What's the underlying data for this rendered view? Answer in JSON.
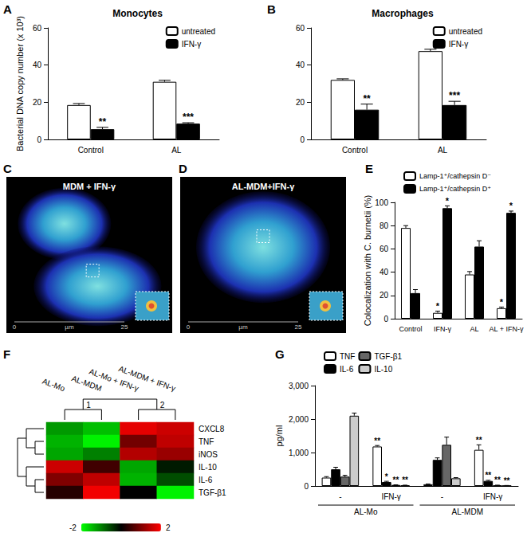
{
  "chart_data": [
    {
      "panel": "A",
      "type": "bar",
      "title": "Monocytes",
      "y_label": "Bacterial DNA copy number (x 10³)",
      "categories": [
        "Control",
        "AL"
      ],
      "series": [
        {
          "name": "untreated",
          "color": "#ffffff",
          "values": [
            18.5,
            31
          ],
          "errors": [
            0.8,
            0.8
          ]
        },
        {
          "name": "IFN-γ",
          "color": "#000000",
          "values": [
            5.5,
            8.5
          ],
          "errors": [
            1.0,
            0.5
          ],
          "significance": [
            "**",
            "***"
          ]
        }
      ],
      "ylim": [
        0,
        60
      ],
      "yticks": [
        0,
        20,
        40,
        60
      ],
      "grid": false,
      "legend": "upper right"
    },
    {
      "panel": "B",
      "type": "bar",
      "title": "Macrophages",
      "categories": [
        "Control",
        "AL"
      ],
      "series": [
        {
          "name": "untreated",
          "color": "#ffffff",
          "values": [
            32,
            47.5
          ],
          "errors": [
            0.6,
            1.0
          ]
        },
        {
          "name": "IFN-γ",
          "color": "#000000",
          "values": [
            16,
            18.5
          ],
          "errors": [
            3,
            2
          ],
          "significance": [
            "**",
            "***"
          ]
        }
      ],
      "ylim": [
        0,
        60
      ],
      "yticks": [
        0,
        20,
        40,
        60
      ],
      "grid": false,
      "legend": "upper right"
    },
    {
      "panel": "E",
      "type": "bar",
      "y_label": "Colocalization with C. burnetii (%)",
      "categories": [
        "Control",
        "IFN-γ",
        "AL",
        "AL + IFN-γ"
      ],
      "series": [
        {
          "name": "Lamp-1⁺/cathepsin D⁻",
          "color": "#ffffff",
          "values": [
            78,
            5,
            38,
            9
          ],
          "errors": [
            2,
            1.5,
            2.5,
            1
          ],
          "significance": [
            null,
            "*",
            null,
            "*"
          ]
        },
        {
          "name": "Lamp-1⁺/cathepsin D⁺",
          "color": "#000000",
          "values": [
            22,
            95,
            62,
            91
          ],
          "errors": [
            3,
            2,
            5,
            1.5
          ],
          "significance": [
            null,
            "*",
            null,
            "*"
          ]
        }
      ],
      "ylim": [
        0,
        100
      ],
      "yticks": [
        0,
        20,
        40,
        60,
        80,
        100
      ],
      "grid": false,
      "legend": "upper left"
    },
    {
      "panel": "F",
      "type": "heatmap",
      "categories": [
        "AL-Mo",
        "AL-MDM",
        "AL-Mo + IFN-γ",
        "AL-MDM + IFN-γ"
      ],
      "rows": [
        "CXCL8",
        "TNF",
        "iNOS",
        "IL-10",
        "IL-6",
        "TGF-β1"
      ],
      "cells": [
        [
          -1.2,
          -1.5,
          1.8,
          1.6
        ],
        [
          -1.4,
          -1.9,
          0.9,
          1.5
        ],
        [
          -1.3,
          -1.0,
          1.4,
          1.2
        ],
        [
          1.6,
          0.5,
          -1.3,
          -0.2
        ],
        [
          1.0,
          1.5,
          -1.4,
          -0.6
        ],
        [
          0.3,
          1.9,
          0.0,
          -1.9
        ]
      ],
      "colorbar": {
        "range": [
          -2,
          2
        ],
        "ticks": [
          -2,
          2
        ],
        "colors": [
          "#00ff00",
          "#000000",
          "#ff0000"
        ]
      },
      "column_tree": [
        [
          "AL-Mo",
          "AL-MDM"
        ],
        [
          "AL-Mo + IFN-γ",
          "AL-MDM + IFN-γ"
        ]
      ],
      "cluster_labels": [
        "1",
        "2"
      ],
      "row_tree": [
        [
          "CXCL8",
          [
            "TNF",
            "iNOS"
          ]
        ],
        [
          "IL-10",
          [
            "IL-6",
            "TGF-β1"
          ]
        ]
      ]
    },
    {
      "panel": "G",
      "type": "bar",
      "y_label": "pg/ml",
      "categories": [
        "-",
        "IFN-γ",
        "-",
        "IFN-γ"
      ],
      "groups": [
        "AL-Mo",
        "AL-Mo",
        "AL-MDM",
        "AL-MDM"
      ],
      "series": [
        {
          "name": "TNF",
          "color": "#ffffff",
          "values": [
            250,
            1180,
            50,
            1080
          ],
          "errors": [
            30,
            30,
            10,
            150
          ],
          "significance": [
            null,
            "**",
            null,
            "**"
          ]
        },
        {
          "name": "IL-6",
          "color": "#000000",
          "values": [
            500,
            120,
            780,
            150
          ],
          "errors": [
            60,
            20,
            60,
            20
          ],
          "significance": [
            null,
            "*",
            null,
            "**"
          ]
        },
        {
          "name": "TGF-β1",
          "color": "#666666",
          "values": [
            280,
            30,
            1230,
            20
          ],
          "errors": [
            40,
            5,
            230,
            5
          ],
          "significance": [
            null,
            "**",
            null,
            "**"
          ]
        },
        {
          "name": "IL-10",
          "color": "#cccccc",
          "values": [
            2100,
            20,
            230,
            10
          ],
          "errors": [
            80,
            5,
            20,
            5
          ],
          "significance": [
            null,
            "**",
            null,
            "**"
          ]
        }
      ],
      "ylim": [
        0,
        3000
      ],
      "yticks": [
        0,
        1000,
        2000,
        3000
      ],
      "grid": false,
      "legend": "upper left"
    }
  ],
  "images": [
    {
      "panel": "C",
      "label": "MDM + IFN-γ",
      "scale_ticks": [
        0,
        25
      ],
      "scale_unit": "µm"
    },
    {
      "panel": "D",
      "label": "AL-MDM+IFN-γ",
      "scale_ticks": [
        0,
        25
      ],
      "scale_unit": "µm"
    }
  ]
}
